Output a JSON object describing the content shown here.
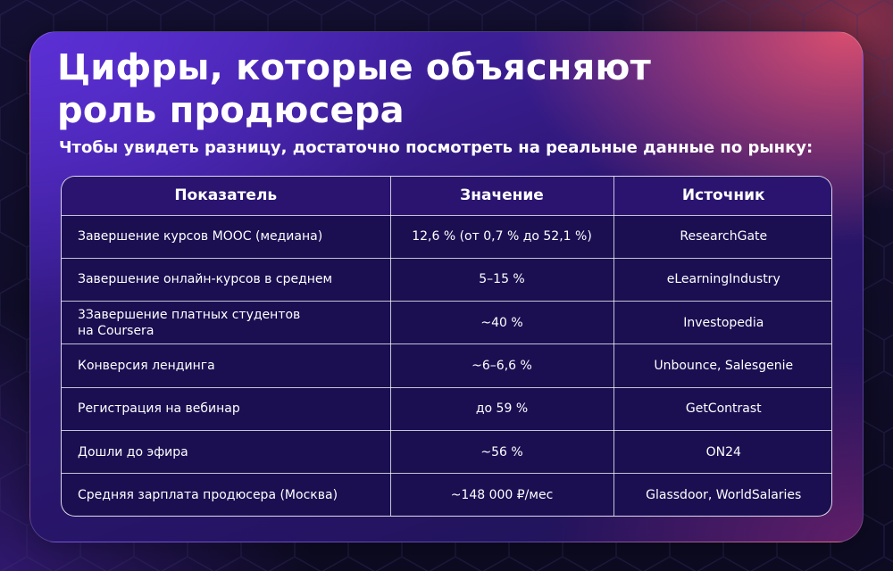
{
  "header": {
    "title_line1": "Цифры, которые объясняют",
    "title_line2": "роль продюсера",
    "subtitle": "Чтобы увидеть разницу, достаточно посмотреть на реальные данные по рынку:"
  },
  "table": {
    "columns": [
      "Показатель",
      "Значение",
      "Источник"
    ],
    "rows": [
      {
        "indicator": "Завершение курсов MOOC (медиана)",
        "value": "12,6 % (от 0,7 % до 52,1 %)",
        "source": "ResearchGate"
      },
      {
        "indicator": "Завершение онлайн-курсов в среднем",
        "value": "5–15 %",
        "source": "eLearningIndustry"
      },
      {
        "indicator_line1": "3Завершение платных студентов",
        "indicator_line2": "на Coursera",
        "value": "~40 %",
        "source": "Investopedia"
      },
      {
        "indicator": "Конверсия лендинга",
        "value": "~6–6,6 %",
        "source": "Unbounce, Salesgenie"
      },
      {
        "indicator": "Регистрация на вебинар",
        "value": "до 59 %",
        "source": "GetContrast"
      },
      {
        "indicator": "Дошли до эфира",
        "value": "~56 %",
        "source": "ON24"
      },
      {
        "indicator": "Средняя зарплата продюсера (Москва)",
        "value": "~148 000 ₽/мес",
        "source": "Glassdoor, WorldSalaries"
      }
    ]
  },
  "colors": {
    "accent_purple": "#5c30d6",
    "accent_pink": "#e0506e",
    "table_bg": "#1b0f52",
    "text": "#ffffff"
  }
}
